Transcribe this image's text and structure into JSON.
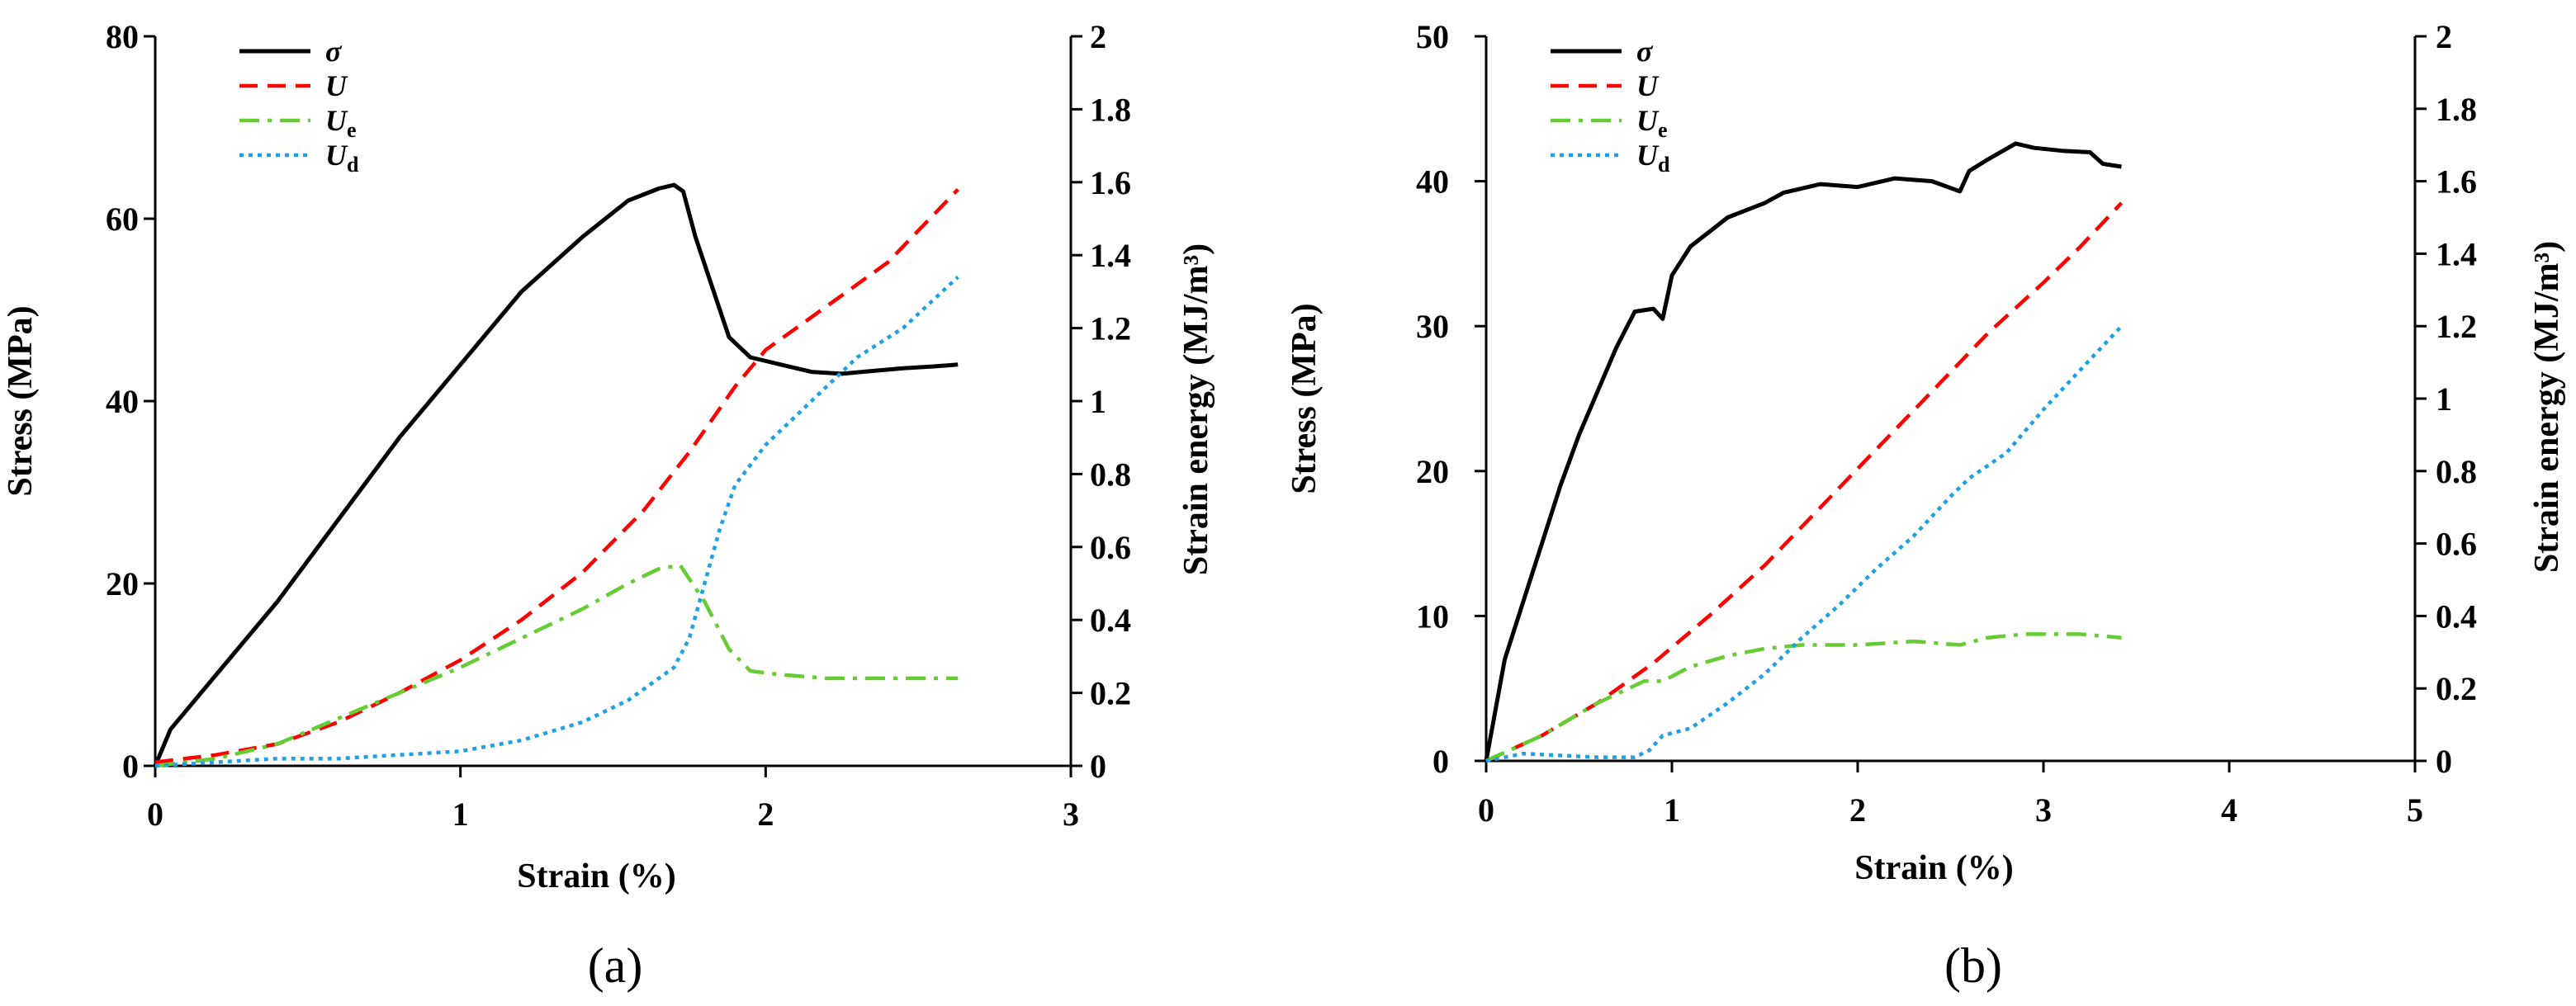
{
  "chart_data": [
    {
      "type": "line",
      "panel_label": "(a)",
      "xlabel": "Strain (%)",
      "ylabel": "Stress (MPa)",
      "y2label": "Strain energy (MJ/m³)",
      "xlim": [
        0,
        3
      ],
      "ylim": [
        0,
        80
      ],
      "y2lim": [
        0,
        2
      ],
      "xticks": [
        "0",
        "1",
        "2",
        "3"
      ],
      "yticks": [
        "0",
        "20",
        "40",
        "60",
        "80"
      ],
      "y2ticks": [
        "0",
        "0.2",
        "0.4",
        "0.6",
        "0.8",
        "1",
        "1.2",
        "1.4",
        "1.6",
        "1.8",
        "2"
      ],
      "legend_position": "top-left",
      "grid": false,
      "series": [
        {
          "name": "σ",
          "subscript": "",
          "axis": "left",
          "color": "#000000",
          "dash": "solid",
          "points": [
            [
              0,
              0
            ],
            [
              0.05,
              4
            ],
            [
              0.2,
              10
            ],
            [
              0.4,
              18
            ],
            [
              0.6,
              27
            ],
            [
              0.8,
              36
            ],
            [
              1.0,
              44
            ],
            [
              1.2,
              52
            ],
            [
              1.4,
              58
            ],
            [
              1.55,
              62
            ],
            [
              1.65,
              63.3
            ],
            [
              1.7,
              63.7
            ],
            [
              1.73,
              63
            ],
            [
              1.77,
              58
            ],
            [
              1.82,
              53
            ],
            [
              1.88,
              47
            ],
            [
              1.95,
              44.8
            ],
            [
              2.05,
              44
            ],
            [
              2.15,
              43.2
            ],
            [
              2.25,
              43
            ],
            [
              2.35,
              43.3
            ],
            [
              2.45,
              43.6
            ],
            [
              2.55,
              43.8
            ],
            [
              2.63,
              44
            ]
          ]
        },
        {
          "name": "U",
          "subscript": "",
          "axis": "right",
          "color": "#ff0000",
          "dash": "dashed",
          "points": [
            [
              0,
              0.01
            ],
            [
              0.2,
              0.03
            ],
            [
              0.4,
              0.06
            ],
            [
              0.6,
              0.12
            ],
            [
              0.8,
              0.2
            ],
            [
              1.0,
              0.29
            ],
            [
              1.2,
              0.4
            ],
            [
              1.4,
              0.53
            ],
            [
              1.6,
              0.7
            ],
            [
              1.75,
              0.86
            ],
            [
              1.9,
              1.04
            ],
            [
              2.0,
              1.14
            ],
            [
              2.2,
              1.26
            ],
            [
              2.4,
              1.38
            ],
            [
              2.63,
              1.58
            ]
          ]
        },
        {
          "name": "U",
          "subscript": "e",
          "axis": "right",
          "color": "#66cc33",
          "dash": "dashdot",
          "points": [
            [
              0,
              0
            ],
            [
              0.2,
              0.02
            ],
            [
              0.4,
              0.06
            ],
            [
              0.6,
              0.13
            ],
            [
              0.8,
              0.2
            ],
            [
              1.0,
              0.27
            ],
            [
              1.2,
              0.35
            ],
            [
              1.4,
              0.43
            ],
            [
              1.55,
              0.5
            ],
            [
              1.65,
              0.54
            ],
            [
              1.72,
              0.55
            ],
            [
              1.8,
              0.45
            ],
            [
              1.88,
              0.32
            ],
            [
              1.95,
              0.26
            ],
            [
              2.05,
              0.25
            ],
            [
              2.2,
              0.24
            ],
            [
              2.4,
              0.24
            ],
            [
              2.63,
              0.24
            ]
          ]
        },
        {
          "name": "U",
          "subscript": "d",
          "axis": "right",
          "color": "#1ea0e6",
          "dash": "dotted",
          "points": [
            [
              0,
              0
            ],
            [
              0.2,
              0.01
            ],
            [
              0.4,
              0.02
            ],
            [
              0.6,
              0.02
            ],
            [
              0.8,
              0.03
            ],
            [
              1.0,
              0.04
            ],
            [
              1.2,
              0.07
            ],
            [
              1.4,
              0.12
            ],
            [
              1.55,
              0.18
            ],
            [
              1.7,
              0.27
            ],
            [
              1.75,
              0.35
            ],
            [
              1.8,
              0.5
            ],
            [
              1.85,
              0.65
            ],
            [
              1.9,
              0.77
            ],
            [
              2.0,
              0.88
            ],
            [
              2.1,
              0.96
            ],
            [
              2.2,
              1.04
            ],
            [
              2.3,
              1.12
            ],
            [
              2.45,
              1.2
            ],
            [
              2.63,
              1.34
            ]
          ]
        }
      ]
    },
    {
      "type": "line",
      "panel_label": "(b)",
      "xlabel": "Strain (%)",
      "ylabel": "Stress (MPa)",
      "y2label": "Strain energy (MJ/m³)",
      "xlim": [
        0,
        5
      ],
      "ylim": [
        0,
        50
      ],
      "y2lim": [
        0,
        2
      ],
      "xticks": [
        "0",
        "1",
        "2",
        "3",
        "4",
        "5"
      ],
      "yticks": [
        "0",
        "10",
        "20",
        "30",
        "40",
        "50"
      ],
      "y2ticks": [
        "0",
        "0.2",
        "0.4",
        "0.6",
        "0.8",
        "1",
        "1.2",
        "1.4",
        "1.6",
        "1.8",
        "2"
      ],
      "legend_position": "top-left",
      "grid": false,
      "series": [
        {
          "name": "σ",
          "subscript": "",
          "axis": "left",
          "color": "#000000",
          "dash": "solid",
          "points": [
            [
              0,
              0
            ],
            [
              0.1,
              7
            ],
            [
              0.2,
              11
            ],
            [
              0.3,
              15
            ],
            [
              0.4,
              19
            ],
            [
              0.5,
              22.5
            ],
            [
              0.6,
              25.5
            ],
            [
              0.7,
              28.5
            ],
            [
              0.8,
              31
            ],
            [
              0.9,
              31.2
            ],
            [
              0.95,
              30.5
            ],
            [
              1.0,
              33.5
            ],
            [
              1.1,
              35.5
            ],
            [
              1.2,
              36.5
            ],
            [
              1.3,
              37.5
            ],
            [
              1.5,
              38.5
            ],
            [
              1.6,
              39.2
            ],
            [
              1.8,
              39.8
            ],
            [
              2.0,
              39.6
            ],
            [
              2.2,
              40.2
            ],
            [
              2.4,
              40
            ],
            [
              2.55,
              39.3
            ],
            [
              2.6,
              40.7
            ],
            [
              2.7,
              41.5
            ],
            [
              2.85,
              42.6
            ],
            [
              2.95,
              42.3
            ],
            [
              3.1,
              42.1
            ],
            [
              3.25,
              42
            ],
            [
              3.32,
              41.2
            ],
            [
              3.42,
              41
            ]
          ]
        },
        {
          "name": "U",
          "subscript": "",
          "axis": "right",
          "color": "#ff0000",
          "dash": "dashed",
          "points": [
            [
              0,
              0
            ],
            [
              0.3,
              0.07
            ],
            [
              0.6,
              0.16
            ],
            [
              0.9,
              0.27
            ],
            [
              1.2,
              0.4
            ],
            [
              1.5,
              0.54
            ],
            [
              1.8,
              0.7
            ],
            [
              2.1,
              0.86
            ],
            [
              2.4,
              1.02
            ],
            [
              2.7,
              1.18
            ],
            [
              3.0,
              1.32
            ],
            [
              3.2,
              1.42
            ],
            [
              3.42,
              1.54
            ]
          ]
        },
        {
          "name": "U",
          "subscript": "e",
          "axis": "right",
          "color": "#66cc33",
          "dash": "dashdot",
          "points": [
            [
              0,
              0
            ],
            [
              0.3,
              0.07
            ],
            [
              0.6,
              0.16
            ],
            [
              0.85,
              0.22
            ],
            [
              0.95,
              0.22
            ],
            [
              1.1,
              0.26
            ],
            [
              1.3,
              0.29
            ],
            [
              1.5,
              0.31
            ],
            [
              1.7,
              0.32
            ],
            [
              2.0,
              0.32
            ],
            [
              2.3,
              0.33
            ],
            [
              2.55,
              0.32
            ],
            [
              2.7,
              0.34
            ],
            [
              2.9,
              0.35
            ],
            [
              3.2,
              0.35
            ],
            [
              3.42,
              0.34
            ]
          ]
        },
        {
          "name": "U",
          "subscript": "d",
          "axis": "right",
          "color": "#1ea0e6",
          "dash": "dotted",
          "points": [
            [
              0,
              0
            ],
            [
              0.2,
              0.02
            ],
            [
              0.4,
              0.015
            ],
            [
              0.6,
              0.01
            ],
            [
              0.8,
              0.01
            ],
            [
              0.88,
              0.03
            ],
            [
              0.95,
              0.07
            ],
            [
              1.1,
              0.09
            ],
            [
              1.3,
              0.16
            ],
            [
              1.5,
              0.24
            ],
            [
              1.7,
              0.34
            ],
            [
              1.9,
              0.43
            ],
            [
              2.1,
              0.53
            ],
            [
              2.3,
              0.62
            ],
            [
              2.5,
              0.73
            ],
            [
              2.6,
              0.78
            ],
            [
              2.8,
              0.85
            ],
            [
              3.0,
              0.97
            ],
            [
              3.2,
              1.08
            ],
            [
              3.42,
              1.2
            ]
          ]
        }
      ]
    }
  ]
}
